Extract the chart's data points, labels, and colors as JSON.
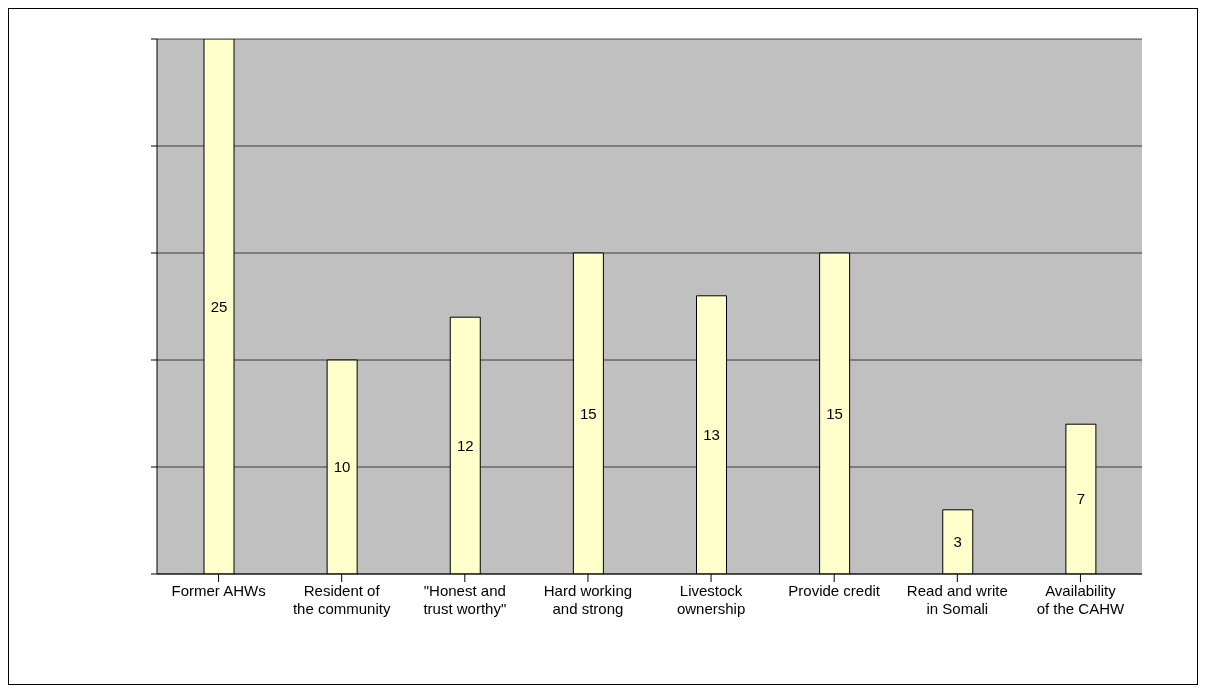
{
  "chart_data": {
    "type": "bar",
    "categories": [
      "Former AHWs",
      "Resident of the community",
      "\"Honest and trust worthy\"",
      "Hard working and strong",
      "Livestock ownership",
      "Provide credit",
      "Read and write in Somali",
      "Availability of the CAHW"
    ],
    "values": [
      25,
      10,
      12,
      15,
      13,
      15,
      3,
      7
    ],
    "color": "#ffffcc",
    "data_labels": true,
    "ylim": [
      0,
      25
    ],
    "yticks": [
      {
        "value": 0,
        "label": null
      },
      {
        "value": 5,
        "label": null
      },
      {
        "value": 10,
        "label": null
      },
      {
        "value": 15,
        "label": null
      },
      {
        "value": 20,
        "label": null
      },
      {
        "value": 25,
        "label": null
      }
    ],
    "grid": "y",
    "tick_labels": "x",
    "legend": false
  }
}
